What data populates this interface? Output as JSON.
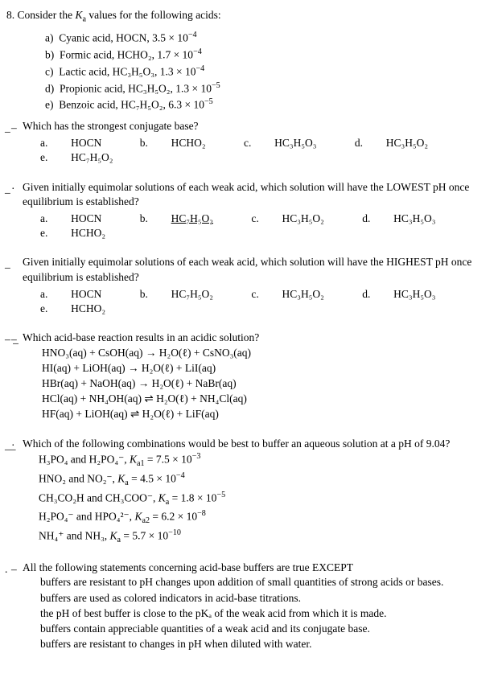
{
  "questionNumber": "8.",
  "intro": "Consider the ",
  "introItalic": "K",
  "introSub": "a",
  "introRest": " values for the following acids:",
  "acids": [
    {
      "label": "a)",
      "name": "Cyanic acid, HOCN, 3.5 × 10",
      "exp": "−4"
    },
    {
      "label": "b)",
      "name": "Formic acid, HCHO₂, 1.7 × 10",
      "exp": "−4"
    },
    {
      "label": "c)",
      "name": "Lactic acid, HC₃H₅O₃, 1.3 × 10",
      "exp": "−4"
    },
    {
      "label": "d)",
      "name": "Propionic acid, HC₃H₅O₂, 1.3 × 10",
      "exp": "−5"
    },
    {
      "label": "e)",
      "name": "Benzoic acid, HC₇H₅O₂, 6.3 × 10",
      "exp": "−5"
    }
  ],
  "q1": {
    "markA": "–",
    "markB": "_",
    "text": "Which has the strongest conjugate base?",
    "opts": [
      {
        "l": "a.",
        "v": "HOCN"
      },
      {
        "l": "b.",
        "v": "HCHO₂"
      },
      {
        "l": "c.",
        "v": "HC₃H₅O₃"
      },
      {
        "l": "d.",
        "v": "HC₃H₅O₂"
      },
      {
        "l": "e.",
        "v": "HC₇H₅O₂"
      }
    ]
  },
  "q2": {
    "markA": "·",
    "markB": "_",
    "text": "Given initially equimolar solutions of each weak acid, which solution will have the LOWEST pH once equilibrium is established?",
    "opts": [
      {
        "l": "a.",
        "v": "HOCN"
      },
      {
        "l": "b.",
        "v": "HC₇H₅O₂",
        "underline": true
      },
      {
        "l": "c.",
        "v": "HC₃H₅O₂"
      },
      {
        "l": "d.",
        "v": "HC₃H₅O₃"
      },
      {
        "l": "e.",
        "v": "HCHO₂"
      }
    ]
  },
  "q3": {
    "markA": "",
    "markB": "_",
    "text": "Given initially equimolar solutions of each weak acid, which solution will have the HIGHEST pH once equilibrium is established?",
    "opts": [
      {
        "l": "a.",
        "v": "HOCN"
      },
      {
        "l": "b.",
        "v": "HC₇H₅O₂"
      },
      {
        "l": "c.",
        "v": "HC₃H₅O₂"
      },
      {
        "l": "d.",
        "v": "HC₃H₅O₃"
      },
      {
        "l": "e.",
        "v": "HCHO₂"
      }
    ]
  },
  "q4": {
    "markA": "–",
    "markB": "–  _",
    "text": "Which acid-base reaction results in an acidic solution?",
    "rxns": [
      "HNO₃(aq) + CsOH(aq) → H₂O(ℓ) + CsNO₃(aq)",
      "HI(aq) + LiOH(aq) → H₂O(ℓ) + LiI(aq)",
      "HBr(aq) + NaOH(aq) → H₂O(ℓ) + NaBr(aq)",
      "HCl(aq) + NH₄OH(aq) ⇌ H₂O(ℓ) + NH₄Cl(aq)",
      "HF(aq) + LiOH(aq) ⇌ H₂O(ℓ) + LiF(aq)"
    ]
  },
  "q5": {
    "markA": "·",
    "markB": "__",
    "text": "Which of the following combinations would be best to buffer an aqueous solution at a pH of 9.04?",
    "buffers": [
      {
        "pair": "H₃PO₄ and H₂PO₄⁻, ",
        "k": "K",
        "ksub": "a1",
        "eq": " = 7.5 × 10",
        "exp": "−3"
      },
      {
        "pair": "HNO₂ and NO₂⁻, ",
        "k": "K",
        "ksub": "a",
        "eq": " = 4.5 × 10",
        "exp": "−4"
      },
      {
        "pair": "CH₃CO₂H and CH₃COO⁻, ",
        "k": "K",
        "ksub": "a",
        "eq": " = 1.8 × 10",
        "exp": "−5"
      },
      {
        "pair": "H₂PO₄⁻ and HPO₄²⁻, ",
        "k": "K",
        "ksub": "a2",
        "eq": " = 6.2 × 10",
        "exp": "−8"
      },
      {
        "pair": "NH₄⁺ and NH₃, ",
        "k": "K",
        "ksub": "a",
        "eq": " = 5.7 × 10",
        "exp": "−10"
      }
    ]
  },
  "q6": {
    "markA": "–",
    "markB": ".",
    "text": "All the following statements concerning acid-base buffers are true EXCEPT",
    "stmts": [
      "buffers are resistant to pH changes upon addition of small quantities of strong acids or bases.",
      "buffers are used as colored indicators in acid-base titrations.",
      "the pH of best buffer is close to the pKₐ of the weak acid from which it is made.",
      "buffers contain appreciable quantities of a weak acid and its conjugate base.",
      "buffers are resistant to changes in pH when diluted with water."
    ]
  }
}
